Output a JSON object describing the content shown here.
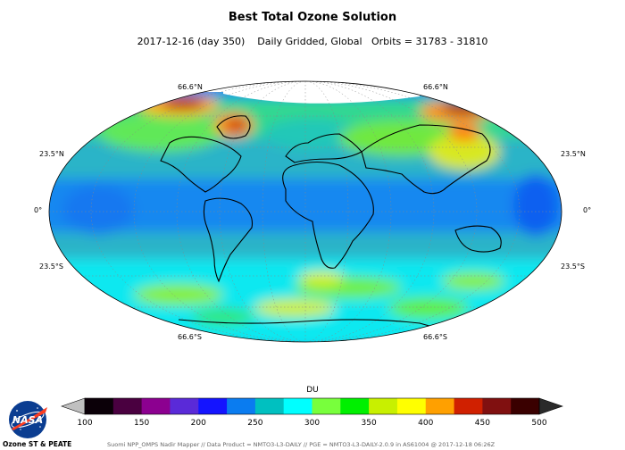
{
  "title": "Best Total Ozone Solution",
  "subtitle": "2017-12-16 (day 350)    Daily Gridded, Global   Orbits = 31783 - 31810",
  "lat_labels": {
    "n66_left": "66.6°N",
    "n66_right": "66.6°N",
    "n23_left": "23.5°N",
    "n23_right": "23.5°N",
    "eq_left": "0°",
    "eq_right": "0°",
    "s23_left": "23.5°S",
    "s23_right": "23.5°S",
    "s66_left": "66.6°S",
    "s66_right": "66.6°S"
  },
  "colorbar": {
    "title": "DU",
    "ticks": [
      "100",
      "150",
      "200",
      "250",
      "300",
      "350",
      "400",
      "450",
      "500"
    ],
    "colors": [
      "#0b0008",
      "#4a0040",
      "#8c0090",
      "#5a2ad8",
      "#1414ff",
      "#0a7cf0",
      "#00c0c0",
      "#00ffff",
      "#78ff3c",
      "#00f000",
      "#c8f000",
      "#ffff00",
      "#ffa000",
      "#d02000",
      "#801010",
      "#3a0000"
    ],
    "under_color": "#c0c0c0",
    "over_color": "#2a2a2a"
  },
  "logo": {
    "text": "NASA",
    "icon": "nasa-meatball-icon"
  },
  "institution": "Ozone ST & PEATE",
  "credit": "Suomi NPP_OMPS Nadir Mapper // Data Product = NMTO3-L3-DAILY // PGE = NMTO3-L3-DAILY-2.0.9 in AS61004 @ 2017-12-18 06:26Z"
}
